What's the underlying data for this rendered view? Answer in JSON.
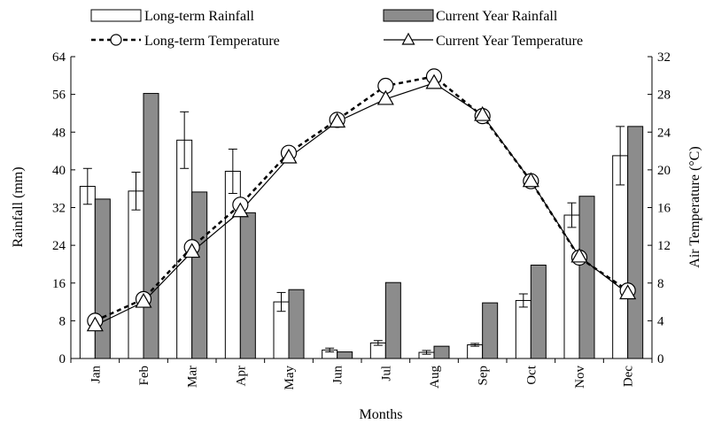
{
  "chart_data": {
    "type": "bar",
    "categories": [
      "Jan",
      "Feb",
      "Mar",
      "Apr",
      "May",
      "Jun",
      "Jul",
      "Aug",
      "Sep",
      "Oct",
      "Nov",
      "Dec"
    ],
    "xlabel": "Months",
    "ylabel": "Rainfall (mm)",
    "y2label": "Air Temperature (°C)",
    "ylim": [
      0,
      64
    ],
    "y2lim": [
      0,
      32
    ],
    "yticks": [
      "0",
      "8",
      "16",
      "24",
      "32",
      "40",
      "48",
      "56",
      "64"
    ],
    "y2ticks": [
      "0",
      "4",
      "8",
      "12",
      "16",
      "20",
      "24",
      "28",
      "32"
    ],
    "series": [
      {
        "name": "Long-term Rainfall",
        "type": "bar",
        "axis": "left",
        "values": [
          36.5,
          35.5,
          46.3,
          39.7,
          12.0,
          1.8,
          3.3,
          1.3,
          2.9,
          12.3,
          30.4,
          43.0
        ],
        "errors": [
          3.8,
          4.0,
          6.0,
          4.7,
          2.0,
          0.4,
          0.5,
          0.4,
          0.3,
          1.4,
          2.6,
          6.2
        ],
        "color": "#ffffff"
      },
      {
        "name": "Current Year Rainfall",
        "type": "bar",
        "axis": "left",
        "values": [
          33.8,
          56.2,
          35.3,
          30.9,
          14.6,
          1.4,
          16.1,
          2.6,
          11.8,
          19.8,
          34.4,
          49.2
        ],
        "color": "#8c8c8c"
      },
      {
        "name": "Long-term Temperature",
        "type": "line",
        "axis": "right",
        "marker": "circle",
        "dashed": true,
        "values": [
          4.0,
          6.3,
          11.8,
          16.3,
          21.8,
          25.3,
          28.9,
          29.9,
          25.7,
          18.8,
          10.7,
          7.2
        ]
      },
      {
        "name": "Current Year Temperature",
        "type": "line",
        "axis": "right",
        "marker": "triangle",
        "dashed": false,
        "values": [
          3.5,
          6.0,
          11.3,
          15.6,
          21.3,
          25.1,
          27.5,
          29.2,
          25.8,
          18.8,
          10.8,
          6.9
        ]
      }
    ],
    "grid": false,
    "legend": "top"
  }
}
